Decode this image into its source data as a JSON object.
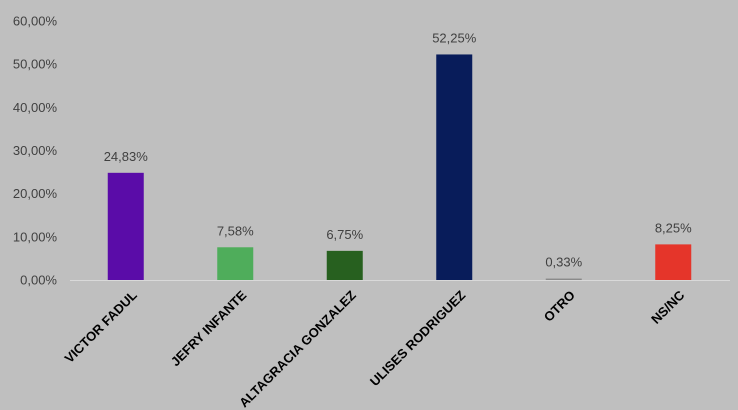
{
  "chart_data": {
    "type": "bar",
    "categories": [
      "VICTOR FADUL",
      "JEFRY INFANTE",
      "ALTAGRACIA GONZALEZ",
      "ULISES RODRIGUEZ",
      "OTRO",
      "NS/NC"
    ],
    "values": [
      24.83,
      7.58,
      6.75,
      52.25,
      0.33,
      8.25
    ],
    "data_labels": [
      "24,83%",
      "7,58%",
      "6,75%",
      "52,25%",
      "0,33%",
      "8,25%"
    ],
    "colors": [
      "#5a0ca8",
      "#4fad5b",
      "#27601f",
      "#081c5a",
      "#8a8a8a",
      "#e5352a"
    ],
    "ylim": [
      0,
      60
    ],
    "yticks": [
      0,
      10,
      20,
      30,
      40,
      50,
      60
    ],
    "ytick_labels": [
      "0,00%",
      "10,00%",
      "20,00%",
      "30,00%",
      "40,00%",
      "50,00%",
      "60,00%"
    ],
    "grid": false,
    "legend": "none",
    "title": "",
    "xlabel": "",
    "ylabel": ""
  }
}
